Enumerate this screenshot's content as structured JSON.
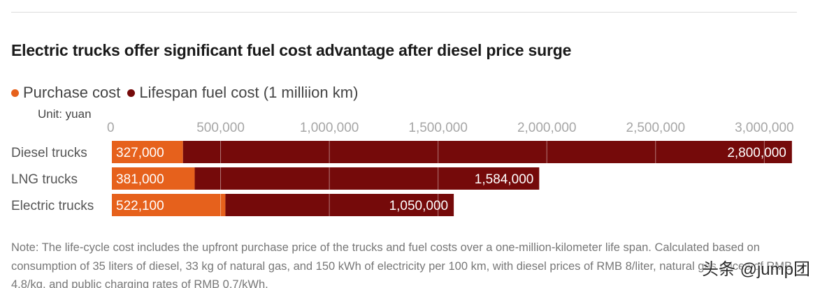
{
  "title": "Electric trucks offer significant fuel cost advantage after diesel price surge",
  "legend": [
    {
      "label": "Purchase cost",
      "color": "#e6611c"
    },
    {
      "label": "Lifespan fuel cost (1 milliion km)",
      "color": "#750a0a"
    }
  ],
  "unit": "Unit: yuan",
  "chart_data": {
    "type": "bar",
    "orientation": "horizontal",
    "stacked": true,
    "categories": [
      "Diesel trucks",
      "LNG trucks",
      "Electric trucks"
    ],
    "series": [
      {
        "name": "Purchase cost",
        "values": [
          327000,
          381000,
          522100
        ],
        "labels": [
          "327,000",
          "381,000",
          "522,100"
        ],
        "color": "#e6611c"
      },
      {
        "name": "Lifespan fuel cost (1 milliion km)",
        "values": [
          2800000,
          1584000,
          1050000
        ],
        "labels": [
          "2,800,000",
          "1,584,000",
          "1,050,000"
        ],
        "color": "#750a0a"
      }
    ],
    "x_ticks": [
      {
        "value": 0,
        "label": "0"
      },
      {
        "value": 500000,
        "label": "500,000"
      },
      {
        "value": 1000000,
        "label": "1,000,000"
      },
      {
        "value": 1500000,
        "label": "1,500,000"
      },
      {
        "value": 2000000,
        "label": "2,000,000"
      },
      {
        "value": 2500000,
        "label": "2,500,000"
      },
      {
        "value": 3000000,
        "label": "3,000,000"
      }
    ],
    "xlim": [
      0,
      3150000
    ],
    "grid": true
  },
  "note": "Note: The life-cycle cost includes the upfront purchase price of the trucks and fuel costs over a one-million-kilometer life span. Calculated based on consumption of 35 liters of diesel, 33 kg of natural gas, and 150 kWh of electricity per 100 km, with diesel prices of RMB 8/liter, natural gas prices of RMB 4.8/kg, and public charging rates of RMB 0.7/kWh.",
  "watermark": "头条 @jump团"
}
